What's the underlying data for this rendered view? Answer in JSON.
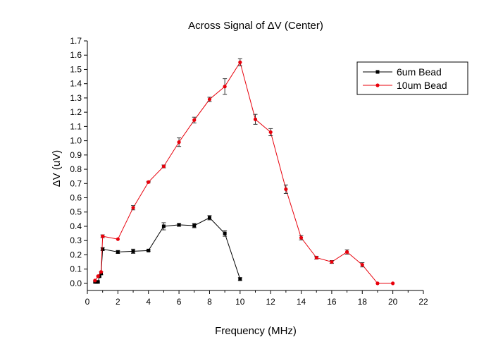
{
  "chart_data": {
    "type": "line",
    "title": "Across Signal of ΔV (Center)",
    "xlabel": "Frequency (MHz)",
    "ylabel": "ΔV (uV)",
    "xlim": [
      0,
      22
    ],
    "ylim": [
      -0.05,
      1.7
    ],
    "x_ticks": [
      "0",
      "2",
      "4",
      "6",
      "8",
      "10",
      "12",
      "14",
      "16",
      "18",
      "20",
      "22"
    ],
    "y_ticks": [
      "0.0",
      "0.1",
      "0.2",
      "0.3",
      "0.4",
      "0.5",
      "0.6",
      "0.7",
      "0.8",
      "0.9",
      "1.0",
      "1.1",
      "1.2",
      "1.3",
      "1.4",
      "1.5",
      "1.6",
      "1.7"
    ],
    "grid": false,
    "legend_position": "top-right",
    "series": [
      {
        "name": "6um Bead",
        "color": "#000000",
        "marker": "square",
        "x": [
          0.5,
          0.6,
          0.7,
          0.8,
          0.9,
          1,
          2,
          3,
          4,
          5,
          6,
          7,
          8,
          9,
          10
        ],
        "y": [
          0.01,
          0.01,
          0.01,
          0.05,
          0.07,
          0.24,
          0.22,
          0.225,
          0.23,
          0.4,
          0.41,
          0.405,
          0.46,
          0.35,
          0.03
        ],
        "error": [
          0.0,
          0.0,
          0.0,
          0.0,
          0.01,
          0.01,
          0.01,
          0.015,
          0.005,
          0.025,
          0.01,
          0.015,
          0.015,
          0.02,
          0.01
        ]
      },
      {
        "name": "10um Bead",
        "color": "#e8000b",
        "marker": "circle",
        "x": [
          0.5,
          0.7,
          0.9,
          1,
          2,
          3,
          4,
          5,
          6,
          7,
          8,
          9,
          10,
          11,
          12,
          13,
          14,
          15,
          16,
          17,
          18,
          19,
          20
        ],
        "y": [
          0.02,
          0.05,
          0.08,
          0.33,
          0.31,
          0.53,
          0.71,
          0.82,
          0.99,
          1.145,
          1.29,
          1.38,
          1.55,
          1.15,
          1.06,
          0.66,
          0.32,
          0.18,
          0.15,
          0.22,
          0.13,
          0.0,
          0.0
        ],
        "error": [
          0.0,
          0.0,
          0.0,
          0.01,
          0.0,
          0.015,
          0.005,
          0.01,
          0.03,
          0.02,
          0.015,
          0.055,
          0.025,
          0.035,
          0.025,
          0.03,
          0.015,
          0.01,
          0.01,
          0.015,
          0.015,
          0.0,
          0.0
        ]
      }
    ]
  }
}
